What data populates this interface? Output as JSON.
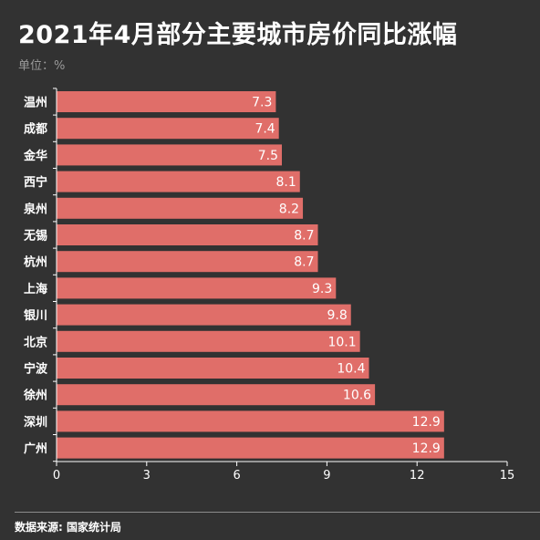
{
  "title": "2021年4月部分主要城市房价同比涨幅",
  "unit_label": "单位：%",
  "source": "数据来源: 国家统计局",
  "colors": {
    "background": "#323232",
    "bar": "#e06e69",
    "text": "#ffffff",
    "axis": "#ffffff"
  },
  "chart_data": {
    "type": "bar",
    "orientation": "horizontal",
    "title": "2021年4月部分主要城市房价同比涨幅",
    "categories": [
      "温州",
      "成都",
      "金华",
      "西宁",
      "泉州",
      "无锡",
      "杭州",
      "上海",
      "银川",
      "北京",
      "宁波",
      "徐州",
      "深圳",
      "广州"
    ],
    "values": [
      7.3,
      7.4,
      7.5,
      8.1,
      8.2,
      8.7,
      8.7,
      9.3,
      9.8,
      10.1,
      10.4,
      10.6,
      12.9,
      12.9
    ],
    "value_labels": [
      "7.3",
      "7.4",
      "7.5",
      "8.1",
      "8.2",
      "8.7",
      "8.7",
      "9.3",
      "9.8",
      "10.1",
      "10.4",
      "10.6",
      "12.9",
      "12.9"
    ],
    "xlim": [
      0,
      15
    ],
    "xticks": [
      0,
      3,
      6,
      9,
      12,
      15
    ],
    "xtick_labels": [
      "0",
      "3",
      "6",
      "9",
      "12",
      "15"
    ],
    "grid": false,
    "legend": "none"
  }
}
